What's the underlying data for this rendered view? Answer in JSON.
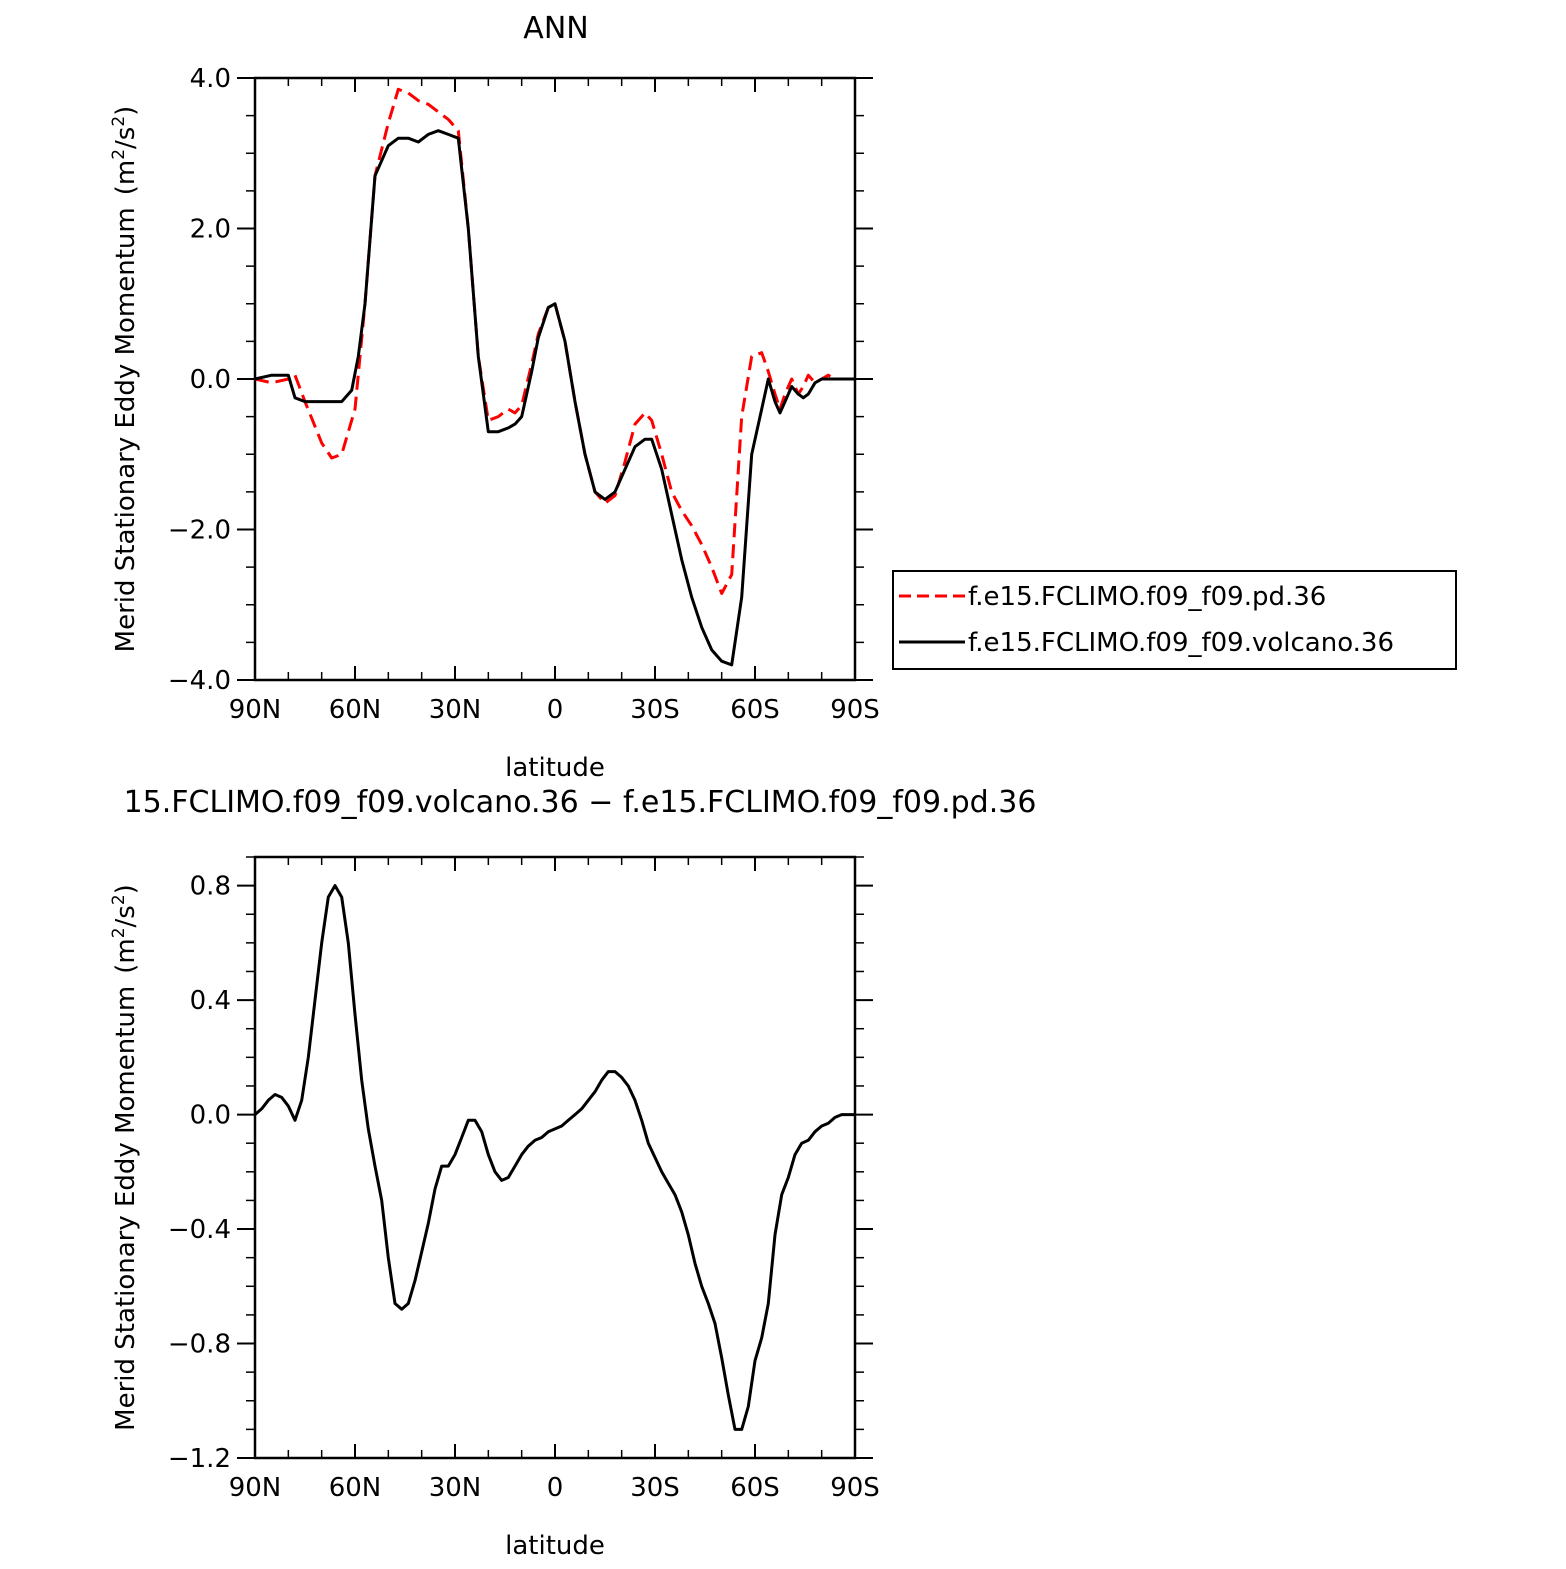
{
  "chart_data": [
    {
      "type": "line",
      "title": "ANN",
      "xlabel": "latitude",
      "ylabel": "Merid Stationary Eddy Momentum",
      "yunit_base": "(m",
      "yunit_sup1": "2",
      "yunit_mid": "/s",
      "yunit_sup2": "2",
      "yunit_end": ")",
      "xlim": [
        90,
        -90
      ],
      "ylim": [
        -4.0,
        4.0
      ],
      "xticks": [
        90,
        60,
        30,
        0,
        -30,
        -60,
        -90
      ],
      "xticklabels": [
        "90N",
        "60N",
        "30N",
        "0",
        "30S",
        "60S",
        "90S"
      ],
      "yticks": [
        -4.0,
        -2.0,
        0.0,
        2.0,
        4.0
      ],
      "yticklabels": [
        "−4.0",
        "−2.0",
        "0.0",
        "2.0",
        "4.0"
      ],
      "legend_position": "right",
      "series": [
        {
          "name": "f.e15.FCLIMO.f09_f09.pd.36",
          "color": "#ff0000",
          "dash": "dashed",
          "x": [
            90,
            85,
            80,
            78,
            75,
            70,
            67,
            64,
            60,
            57,
            54,
            50,
            47,
            44,
            41,
            38,
            35,
            32,
            29,
            26,
            23,
            20,
            17,
            14,
            12,
            10,
            7,
            5,
            2,
            0,
            -3,
            -6,
            -9,
            -12,
            -15,
            -18,
            -21,
            -24,
            -27,
            -29,
            -32,
            -35,
            -38,
            -41,
            -44,
            -47,
            -50,
            -53,
            -56,
            -59,
            -62,
            -64,
            -66,
            -67.5,
            -69,
            -71,
            -73,
            -74.5,
            -76,
            -78,
            -80,
            -82,
            -84,
            -86,
            -88,
            -90
          ],
          "values": [
            0.0,
            -0.05,
            0.0,
            0.05,
            -0.3,
            -0.85,
            -1.05,
            -1.0,
            -0.4,
            1.0,
            2.7,
            3.4,
            3.85,
            3.8,
            3.7,
            3.65,
            3.55,
            3.45,
            3.3,
            2.0,
            0.3,
            -0.55,
            -0.5,
            -0.4,
            -0.45,
            -0.35,
            0.2,
            0.6,
            0.95,
            1.0,
            0.5,
            -0.3,
            -1.0,
            -1.5,
            -1.65,
            -1.55,
            -1.1,
            -0.6,
            -0.45,
            -0.55,
            -1.0,
            -1.5,
            -1.75,
            -1.95,
            -2.2,
            -2.5,
            -2.85,
            -2.6,
            -0.5,
            0.3,
            0.35,
            0.1,
            -0.2,
            -0.4,
            -0.2,
            0.0,
            -0.2,
            -0.1,
            0.05,
            -0.05,
            0.0,
            0.05,
            0.0,
            0.0,
            0.0,
            0.0
          ]
        },
        {
          "name": "f.e15.FCLIMO.f09_f09.volcano.36",
          "color": "#000000",
          "dash": "solid",
          "x": [
            90,
            85,
            80,
            78,
            75,
            72,
            70,
            67,
            64,
            61,
            59,
            57,
            54,
            50,
            47,
            44,
            41,
            38,
            35,
            32,
            29,
            26,
            23,
            20,
            17,
            14,
            12,
            10,
            7,
            5,
            2,
            0,
            -3,
            -6,
            -9,
            -12,
            -15,
            -18,
            -21,
            -24,
            -27,
            -29,
            -32,
            -35,
            -38,
            -41,
            -44,
            -47,
            -50,
            -53,
            -56,
            -59,
            -62,
            -64,
            -66,
            -67.5,
            -69,
            -71,
            -73,
            -74.5,
            -76,
            -78,
            -80,
            -82,
            -84,
            -86,
            -88,
            -90
          ],
          "values": [
            0.0,
            0.05,
            0.05,
            -0.25,
            -0.3,
            -0.3,
            -0.3,
            -0.3,
            -0.3,
            -0.15,
            0.3,
            1.0,
            2.7,
            3.1,
            3.2,
            3.2,
            3.15,
            3.25,
            3.3,
            3.25,
            3.2,
            2.0,
            0.3,
            -0.7,
            -0.7,
            -0.65,
            -0.6,
            -0.5,
            0.1,
            0.55,
            0.95,
            1.0,
            0.5,
            -0.3,
            -1.0,
            -1.5,
            -1.6,
            -1.5,
            -1.2,
            -0.9,
            -0.8,
            -0.8,
            -1.2,
            -1.8,
            -2.4,
            -2.9,
            -3.3,
            -3.6,
            -3.75,
            -3.8,
            -2.9,
            -1.0,
            -0.4,
            0.0,
            -0.3,
            -0.45,
            -0.3,
            -0.1,
            -0.2,
            -0.25,
            -0.2,
            -0.05,
            0.0,
            0.0,
            0.0,
            0.0,
            0.0,
            0.0
          ]
        }
      ]
    },
    {
      "type": "line",
      "title": "15.FCLIMO.f09_f09.volcano.36 − f.e15.FCLIMO.f09_f09.pd.36",
      "xlabel": "latitude",
      "ylabel": "Merid Stationary Eddy Momentum",
      "yunit_base": "(m",
      "yunit_sup1": "2",
      "yunit_mid": "/s",
      "yunit_sup2": "2",
      "yunit_end": ")",
      "xlim": [
        90,
        -90
      ],
      "ylim": [
        -1.2,
        0.9
      ],
      "xticks": [
        90,
        60,
        30,
        0,
        -30,
        -60,
        -90
      ],
      "xticklabels": [
        "90N",
        "60N",
        "30N",
        "0",
        "30S",
        "60S",
        "90S"
      ],
      "yticks": [
        -1.2,
        -0.8,
        -0.4,
        0.0,
        0.4,
        0.8
      ],
      "yticklabels": [
        "−1.2",
        "−0.8",
        "−0.4",
        "0.0",
        "0.4",
        "0.8"
      ],
      "series": [
        {
          "name": "",
          "color": "#000000",
          "dash": "solid",
          "x": [
            90,
            88,
            86,
            84,
            82,
            80,
            78,
            76,
            74,
            72,
            70,
            68,
            66,
            64,
            62,
            60,
            58,
            56,
            54,
            52,
            50,
            48,
            46,
            44,
            42,
            40,
            38,
            36,
            34,
            32,
            30,
            28,
            26,
            24,
            22,
            20,
            18,
            16,
            14,
            12,
            10,
            8,
            6,
            4,
            2,
            0,
            -2,
            -4,
            -6,
            -8,
            -10,
            -12,
            -14,
            -16,
            -18,
            -20,
            -22,
            -24,
            -26,
            -28,
            -30,
            -32,
            -34,
            -36,
            -38,
            -40,
            -42,
            -44,
            -46,
            -48,
            -50,
            -52,
            -54,
            -56,
            -58,
            -60,
            -62,
            -64,
            -66,
            -68,
            -70,
            -72,
            -74,
            -76,
            -78,
            -80,
            -82,
            -84,
            -86,
            -88,
            -90
          ],
          "values": [
            0.0,
            0.02,
            0.05,
            0.07,
            0.06,
            0.03,
            -0.02,
            0.05,
            0.2,
            0.4,
            0.6,
            0.76,
            0.8,
            0.76,
            0.6,
            0.35,
            0.12,
            -0.05,
            -0.18,
            -0.3,
            -0.5,
            -0.66,
            -0.68,
            -0.66,
            -0.58,
            -0.48,
            -0.38,
            -0.26,
            -0.18,
            -0.18,
            -0.14,
            -0.08,
            -0.02,
            -0.02,
            -0.06,
            -0.14,
            -0.2,
            -0.23,
            -0.22,
            -0.18,
            -0.14,
            -0.11,
            -0.09,
            -0.08,
            -0.06,
            -0.05,
            -0.04,
            -0.02,
            0.0,
            0.02,
            0.05,
            0.08,
            0.12,
            0.15,
            0.15,
            0.13,
            0.1,
            0.05,
            -0.02,
            -0.1,
            -0.15,
            -0.2,
            -0.24,
            -0.28,
            -0.34,
            -0.42,
            -0.52,
            -0.6,
            -0.66,
            -0.73,
            -0.85,
            -0.98,
            -1.1,
            -1.1,
            -1.02,
            -0.86,
            -0.78,
            -0.66,
            -0.42,
            -0.28,
            -0.22,
            -0.14,
            -0.1,
            -0.09,
            -0.06,
            -0.04,
            -0.03,
            -0.01,
            0.0,
            0.0,
            0.0
          ]
        }
      ]
    }
  ]
}
